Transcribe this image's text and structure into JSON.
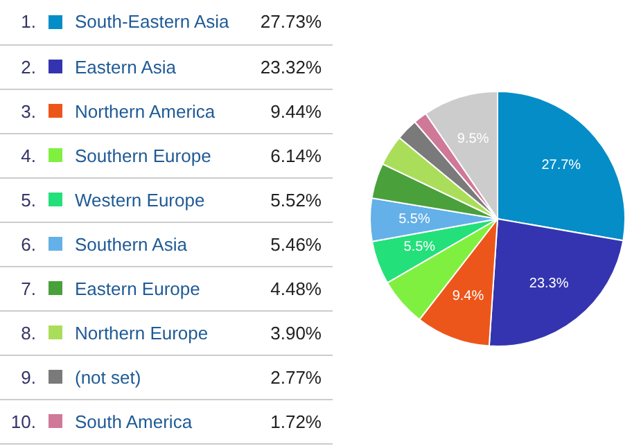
{
  "chart_data": {
    "type": "pie",
    "categories": [
      "South-Eastern Asia",
      "Eastern Asia",
      "Northern America",
      "Southern Europe",
      "Western Europe",
      "Southern Asia",
      "Eastern Europe",
      "Northern Europe",
      "(not set)",
      "South America",
      null
    ],
    "values": [
      27.73,
      23.32,
      9.44,
      6.14,
      5.52,
      5.46,
      4.48,
      3.9,
      2.77,
      1.72,
      9.52
    ],
    "colors": [
      "#058dc7",
      "#3434b0",
      "#ed561b",
      "#80f040",
      "#24e07a",
      "#64b0e8",
      "#4aa03a",
      "#aade5a",
      "#7a7a7a",
      "#d07898",
      "#cccccc"
    ],
    "value_labels": [
      "27.73%",
      "23.32%",
      "9.44%",
      "6.14%",
      "5.52%",
      "5.46%",
      "4.48%",
      "3.90%",
      "2.77%",
      "1.72%",
      null
    ],
    "annotations": [
      {
        "text": "27.7%",
        "x": "South-Eastern Asia"
      },
      {
        "text": "23.3%",
        "x": "Eastern Asia"
      },
      {
        "text": "9.4%",
        "x": "Northern America"
      },
      {
        "text": "5.5%",
        "x": "Western Europe"
      },
      {
        "text": "5.5%",
        "x": "Southern Asia"
      },
      {
        "text": "9.5%",
        "x": null
      },
      "1.",
      "2.",
      "3.",
      "4.",
      "5.",
      "6.",
      "7.",
      "8.",
      "9.",
      "10."
    ],
    "legend": "left"
  }
}
